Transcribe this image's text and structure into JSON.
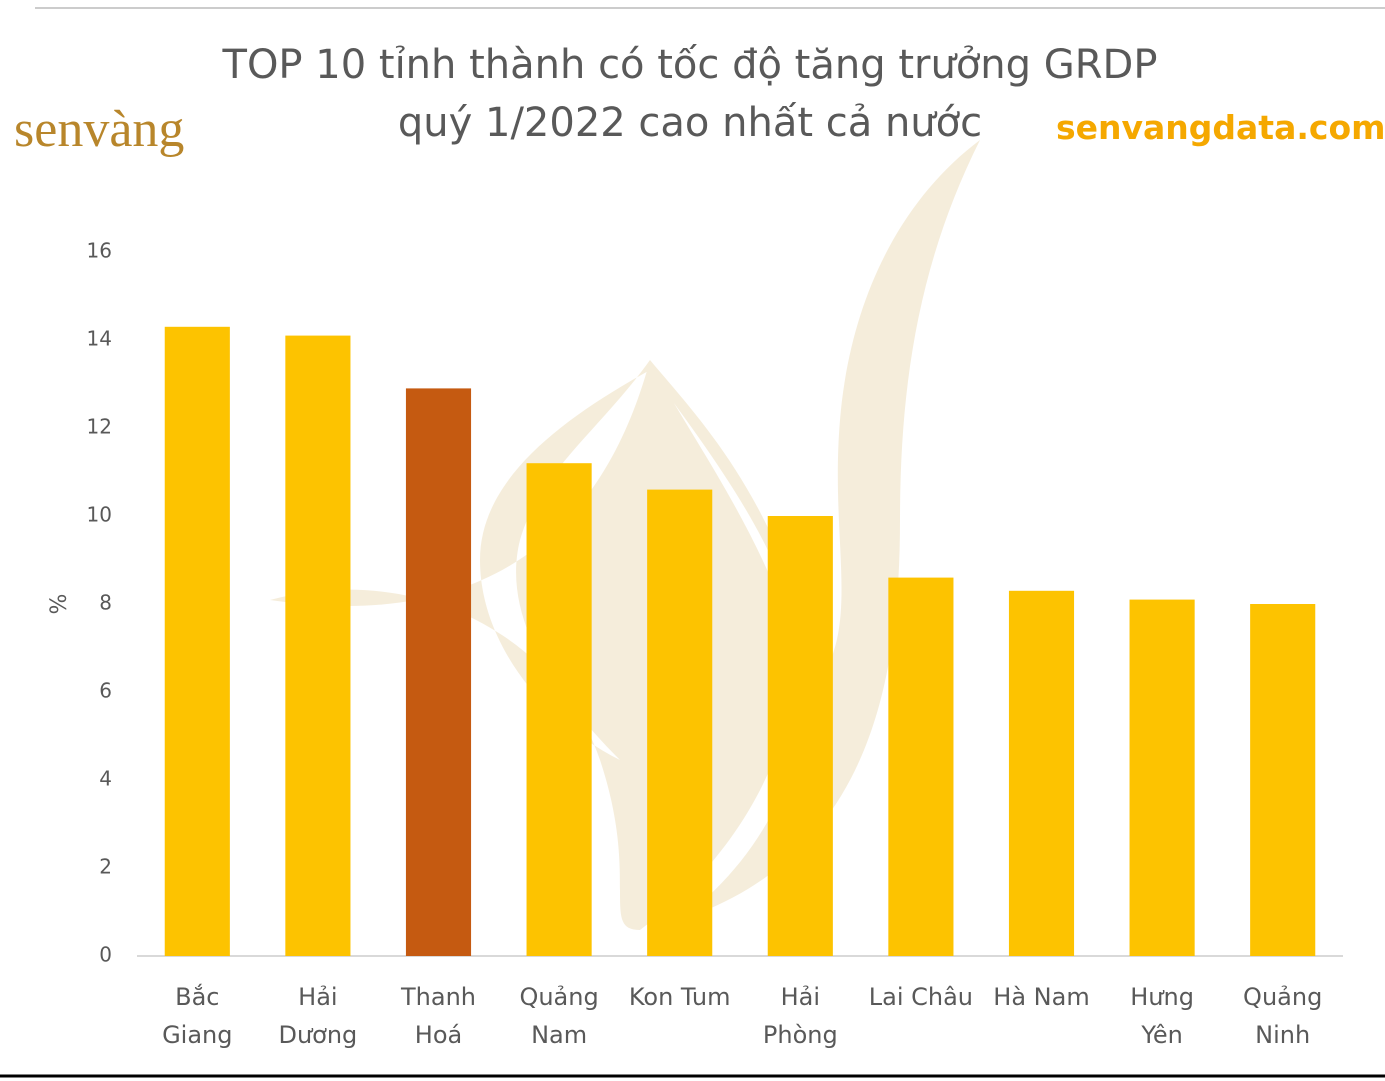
{
  "chart_data": {
    "type": "bar",
    "title": "TOP 10 tỉnh thành có tốc độ tăng trưởng GRDP\nquý 1/2022 cao nhất cả nước",
    "logo": "senvàng",
    "website": "senvangdata.com",
    "y_label": "%",
    "categories": [
      "Bắc\nGiang",
      "Hải\nDương",
      "Thanh\nHoá",
      "Quảng\nNam",
      "Kon Tum",
      "Hải\nPhòng",
      "Lai Châu",
      "Hà Nam",
      "Hưng\nYên",
      "Quảng\nNinh"
    ],
    "values": [
      14.3,
      14.1,
      12.9,
      11.2,
      10.6,
      10.0,
      8.6,
      8.3,
      8.1,
      8.0
    ],
    "colors": [
      "#FDC300",
      "#FDC300",
      "#C55A11",
      "#FDC300",
      "#FDC300",
      "#FDC300",
      "#FDC300",
      "#FDC300",
      "#FDC300",
      "#FDC300"
    ],
    "ylim": [
      0,
      16
    ],
    "yticks": [
      0,
      2,
      4,
      6,
      8,
      10,
      12,
      14,
      16
    ],
    "grid": false
  }
}
